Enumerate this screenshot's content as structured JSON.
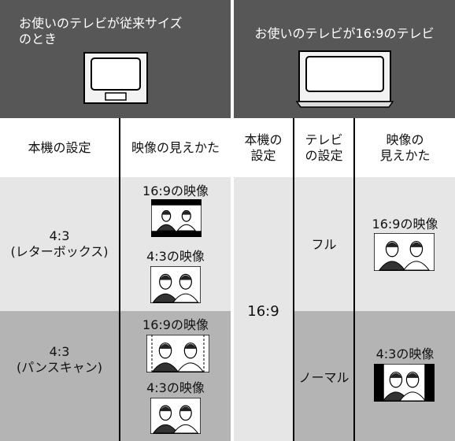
{
  "header": {
    "left": "お使いのテレビが従来サイズ\nのとき",
    "right": "お使いのテレビが16:9のテレビ"
  },
  "column_headers": [
    "本機の設定",
    "映像の見えかた",
    "本機の\n設定",
    "テレビ\nの設定",
    "映像の\n見えかた"
  ],
  "rows": [
    {
      "setting": "4:3\n(レターボックス)",
      "views": [
        "16:9の映像",
        "4:3の映像"
      ]
    },
    {
      "setting": "4:3\n(パンスキャン)",
      "views": [
        "16:9の映像",
        "4:3の映像"
      ]
    }
  ],
  "wide": {
    "setting": "16:9",
    "tv_settings": [
      "フル",
      "ノーマル"
    ],
    "views": [
      "16:9の映像",
      "4:3の映像"
    ]
  }
}
